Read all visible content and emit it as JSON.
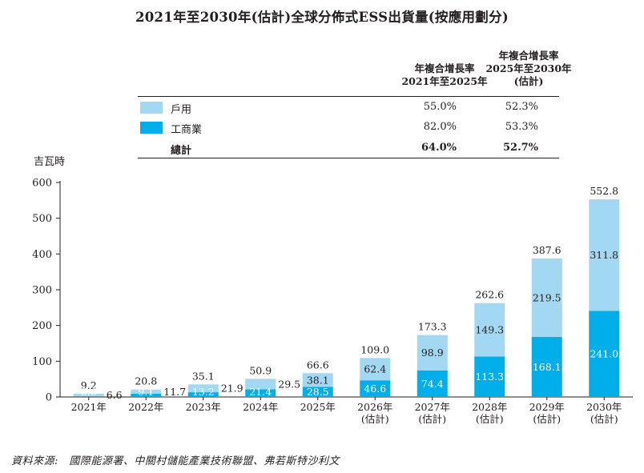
{
  "title": "2021年至2030年(估計)全球分佈式ESS出貨量(按應用劃分)",
  "cagr_headers": {
    "col1": [
      "年複合增長率",
      "2021年至2025年"
    ],
    "col2": [
      "年複合增長率",
      "2025年至2030年",
      "(估計)"
    ]
  },
  "legend_rows": [
    {
      "label": "戶用",
      "cagr1": "55.0%",
      "cagr2": "52.3%",
      "color": "#a3d8f2"
    },
    {
      "label": "工商業",
      "cagr1": "82.0%",
      "cagr2": "53.3%",
      "color": "#00aeea"
    },
    {
      "label": "總計",
      "cagr1": "64.0%",
      "cagr2": "52.7%"
    }
  ],
  "source_text": "資料來源:　國際能源署、中關村儲能產業技術聯盟、弗若斯特沙利文",
  "chart_data": {
    "type": "bar",
    "stacked": true,
    "ylabel": "吉瓦時",
    "ylim": [
      0,
      600
    ],
    "yticks": [
      0,
      100,
      200,
      300,
      400,
      500,
      600
    ],
    "categories": [
      [
        "2021年"
      ],
      [
        "2022年"
      ],
      [
        "2023年"
      ],
      [
        "2024年"
      ],
      [
        "2025年"
      ],
      [
        "2026年",
        "(估計)"
      ],
      [
        "2027年",
        "(估計)"
      ],
      [
        "2028年",
        "(估計)"
      ],
      [
        "2029年",
        "(估計)"
      ],
      [
        "2030年",
        "(估計)"
      ]
    ],
    "series": [
      {
        "name": "工商業",
        "values": [
          2.6,
          9.1,
          13.2,
          21.4,
          28.5,
          46.6,
          74.4,
          113.3,
          168.1,
          241.0
        ],
        "color": "#00aeea"
      },
      {
        "name": "戶用",
        "values": [
          6.6,
          11.7,
          21.9,
          29.5,
          38.1,
          62.4,
          98.9,
          149.3,
          219.5,
          311.8
        ],
        "color": "#a3d8f2"
      }
    ],
    "totals": [
      9.2,
      20.8,
      35.1,
      50.9,
      66.6,
      109.0,
      173.3,
      262.6,
      387.6,
      552.8
    ],
    "value_labels": {
      "commercial": [
        "2.6",
        "9.1",
        "13.2",
        "21.4",
        "28.5",
        "46.6",
        "74.4",
        "113.3",
        "168.1",
        "241.0"
      ],
      "residential": [
        "6.6",
        "11.7",
        "21.9",
        "29.5",
        "38.1",
        "62.4",
        "98.9",
        "149.3",
        "219.5",
        "311.8"
      ],
      "totals": [
        "9.2",
        "20.8",
        "35.1",
        "50.9",
        "66.6",
        "109.0",
        "173.3",
        "262.6",
        "387.6",
        "552.8"
      ]
    }
  }
}
